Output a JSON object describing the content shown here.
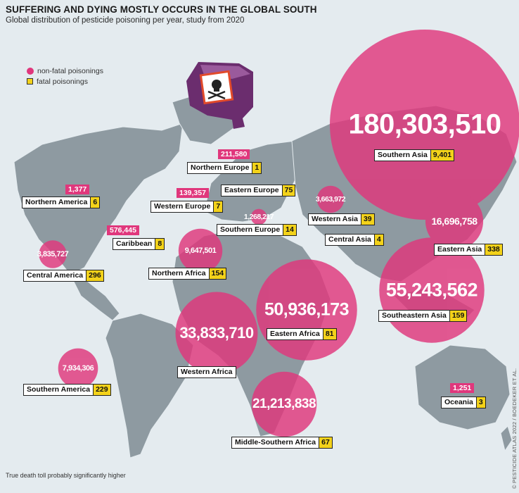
{
  "title": "SUFFERING AND DYING MOSTLY OCCURS IN THE GLOBAL SOUTH",
  "subtitle": "Global distribution of pesticide poisoning per year, study from 2020",
  "legend": {
    "nonfatal": "non-fatal poisonings",
    "fatal": "fatal poisonings"
  },
  "colors": {
    "nonfatal": "#e0377c",
    "fatal": "#f3d21a",
    "land": "#8e9aa1",
    "ocean": "#e4ebef"
  },
  "regions": [
    {
      "name": "Southern Asia",
      "nonfatal": "180,303,510",
      "fatal": "9,401"
    },
    {
      "name": "Southeastern Asia",
      "nonfatal": "55,243,562",
      "fatal": "159"
    },
    {
      "name": "Eastern Africa",
      "nonfatal": "50,936,173",
      "fatal": "81"
    },
    {
      "name": "Western Africa",
      "nonfatal": "33,833,710",
      "fatal": ""
    },
    {
      "name": "Middle-Southern Africa",
      "nonfatal": "21,213,838",
      "fatal": "67"
    },
    {
      "name": "Eastern Asia",
      "nonfatal": "16,696,758",
      "fatal": "338"
    },
    {
      "name": "Northern Africa",
      "nonfatal": "9,647,501",
      "fatal": "154"
    },
    {
      "name": "Southern America",
      "nonfatal": "7,934,306",
      "fatal": "229"
    },
    {
      "name": "Central America",
      "nonfatal": "3,835,727",
      "fatal": "296"
    },
    {
      "name": "Western Asia",
      "nonfatal": "3,663,972",
      "fatal": "39"
    },
    {
      "name": "Southern Europe",
      "nonfatal": "1,268,217",
      "fatal": "14"
    },
    {
      "name": "Caribbean",
      "nonfatal": "576,445",
      "fatal": "8"
    },
    {
      "name": "Northern Europe",
      "nonfatal": "211,580",
      "fatal": "1"
    },
    {
      "name": "Western Europe",
      "nonfatal": "139,357",
      "fatal": "7"
    },
    {
      "name": "Northern America",
      "nonfatal": "1,377",
      "fatal": "6"
    },
    {
      "name": "Oceania",
      "nonfatal": "1,251",
      "fatal": "3"
    },
    {
      "name": "Eastern Europe",
      "nonfatal": "",
      "fatal": "75"
    },
    {
      "name": "Central Asia",
      "nonfatal": "",
      "fatal": "4"
    }
  ],
  "footnote": "True death toll probably significantly higher",
  "credit": "© PESTICIDE ATLAS 2022 / BOEDEKER ET AL.",
  "icon": "pesticide-canister-skull-icon"
}
